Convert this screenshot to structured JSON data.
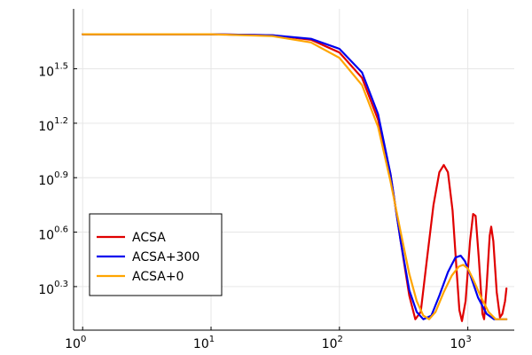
{
  "chart_data": {
    "type": "line",
    "title": "",
    "xlabel": "",
    "ylabel": "",
    "x_scale": "log",
    "y_scale": "log",
    "xlim": [
      0.85,
      2300
    ],
    "ylim_log10": [
      0.06,
      1.83
    ],
    "grid": true,
    "legend_position": "bottom-left",
    "x_ticks": [
      {
        "value": 1,
        "base": "10",
        "exp": "0"
      },
      {
        "value": 10,
        "base": "10",
        "exp": "1"
      },
      {
        "value": 100,
        "base": "10",
        "exp": "2"
      },
      {
        "value": 1000,
        "base": "10",
        "exp": "3"
      }
    ],
    "y_ticks": [
      {
        "log10": 0.3,
        "base": "10",
        "exp": "0.3"
      },
      {
        "log10": 0.6,
        "base": "10",
        "exp": "0.6"
      },
      {
        "log10": 0.9,
        "base": "10",
        "exp": "0.9"
      },
      {
        "log10": 1.2,
        "base": "10",
        "exp": "1.2"
      },
      {
        "log10": 1.5,
        "base": "10",
        "exp": "1.5"
      }
    ],
    "series": [
      {
        "name": "ACSA",
        "color": "#e00000",
        "points": [
          [
            1,
            1.69
          ],
          [
            10,
            1.69
          ],
          [
            30,
            1.685
          ],
          [
            60,
            1.66
          ],
          [
            100,
            1.59
          ],
          [
            150,
            1.45
          ],
          [
            200,
            1.22
          ],
          [
            250,
            0.92
          ],
          [
            300,
            0.55
          ],
          [
            350,
            0.25
          ],
          [
            390,
            0.12
          ],
          [
            430,
            0.16
          ],
          [
            480,
            0.45
          ],
          [
            540,
            0.75
          ],
          [
            600,
            0.93
          ],
          [
            650,
            0.97
          ],
          [
            700,
            0.93
          ],
          [
            760,
            0.72
          ],
          [
            820,
            0.38
          ],
          [
            860,
            0.17
          ],
          [
            900,
            0.11
          ],
          [
            960,
            0.22
          ],
          [
            1040,
            0.55
          ],
          [
            1100,
            0.7
          ],
          [
            1150,
            0.69
          ],
          [
            1220,
            0.45
          ],
          [
            1300,
            0.15
          ],
          [
            1340,
            0.12
          ],
          [
            1400,
            0.3
          ],
          [
            1480,
            0.58
          ],
          [
            1520,
            0.63
          ],
          [
            1580,
            0.55
          ],
          [
            1680,
            0.27
          ],
          [
            1780,
            0.13
          ],
          [
            1860,
            0.15
          ],
          [
            1950,
            0.22
          ],
          [
            2000,
            0.29
          ]
        ]
      },
      {
        "name": "ACSA+300",
        "color": "#0000ee",
        "points": [
          [
            1,
            1.69
          ],
          [
            10,
            1.69
          ],
          [
            30,
            1.685
          ],
          [
            60,
            1.665
          ],
          [
            100,
            1.61
          ],
          [
            150,
            1.48
          ],
          [
            200,
            1.25
          ],
          [
            250,
            0.92
          ],
          [
            300,
            0.55
          ],
          [
            350,
            0.28
          ],
          [
            400,
            0.16
          ],
          [
            450,
            0.12
          ],
          [
            520,
            0.14
          ],
          [
            600,
            0.25
          ],
          [
            700,
            0.38
          ],
          [
            800,
            0.46
          ],
          [
            880,
            0.47
          ],
          [
            950,
            0.44
          ],
          [
            1050,
            0.36
          ],
          [
            1200,
            0.24
          ],
          [
            1400,
            0.15
          ],
          [
            1600,
            0.12
          ],
          [
            1800,
            0.12
          ],
          [
            2000,
            0.12
          ]
        ]
      },
      {
        "name": "ACSA+0",
        "color": "#ffa500",
        "points": [
          [
            1,
            1.69
          ],
          [
            10,
            1.69
          ],
          [
            30,
            1.68
          ],
          [
            60,
            1.645
          ],
          [
            100,
            1.56
          ],
          [
            150,
            1.41
          ],
          [
            200,
            1.18
          ],
          [
            250,
            0.88
          ],
          [
            300,
            0.6
          ],
          [
            350,
            0.37
          ],
          [
            400,
            0.22
          ],
          [
            450,
            0.14
          ],
          [
            500,
            0.12
          ],
          [
            560,
            0.16
          ],
          [
            650,
            0.27
          ],
          [
            750,
            0.36
          ],
          [
            850,
            0.41
          ],
          [
            920,
            0.42
          ],
          [
            1000,
            0.4
          ],
          [
            1100,
            0.34
          ],
          [
            1250,
            0.25
          ],
          [
            1450,
            0.16
          ],
          [
            1650,
            0.12
          ],
          [
            1850,
            0.12
          ],
          [
            2000,
            0.12
          ]
        ]
      }
    ]
  }
}
